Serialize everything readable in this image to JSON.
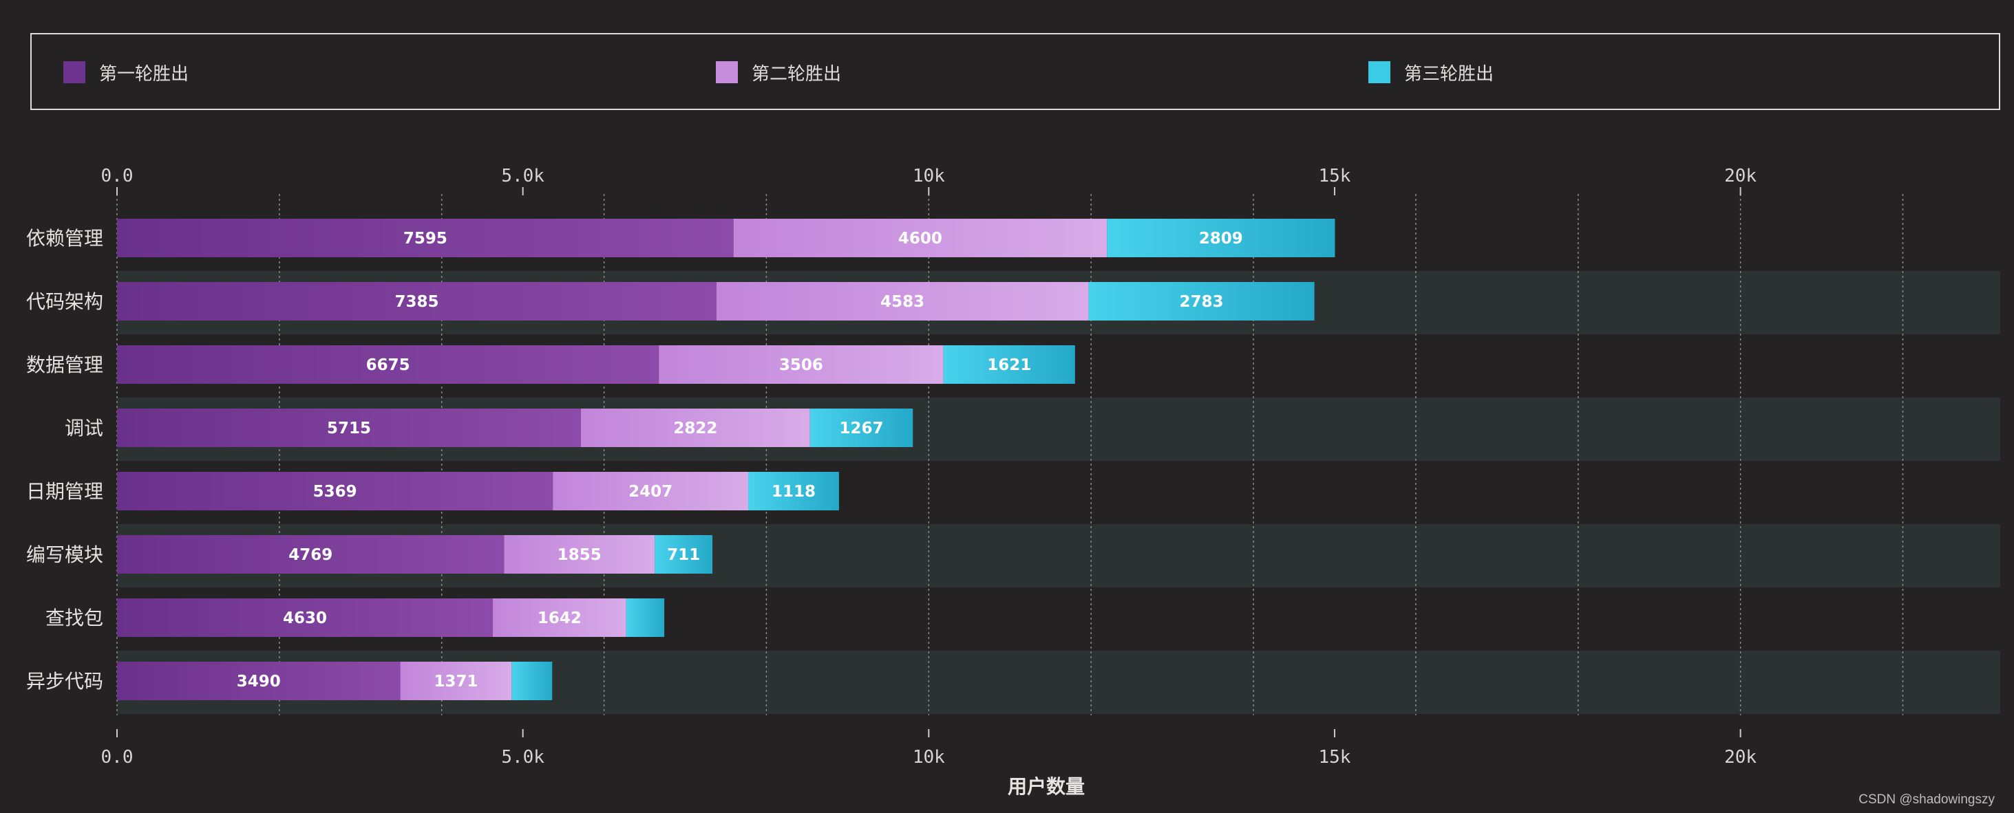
{
  "chart_data": {
    "type": "bar",
    "orientation": "horizontal",
    "stacked": true,
    "categories": [
      "依赖管理",
      "代码架构",
      "数据管理",
      "调试",
      "日期管理",
      "编写模块",
      "查找包",
      "异步代码"
    ],
    "series": [
      {
        "name": "第一轮胜出",
        "color": "#8a4aa8",
        "values": [
          7595,
          7385,
          6675,
          5715,
          5369,
          4769,
          4630,
          3490
        ],
        "labels": [
          "7595",
          "7385",
          "6675",
          "5715",
          "5369",
          "4769",
          "4630",
          "3490"
        ]
      },
      {
        "name": "第二轮胜出",
        "color": "#cf9fe0",
        "values": [
          4600,
          4583,
          3506,
          2822,
          2407,
          1855,
          1642,
          1371
        ],
        "labels": [
          "4600",
          "4583",
          "3506",
          "2822",
          "2407",
          "1855",
          "1642",
          "1371"
        ]
      },
      {
        "name": "第三轮胜出",
        "color": "#3dc8e3",
        "values": [
          2809,
          2783,
          1621,
          1267,
          1118,
          711,
          470,
          500
        ],
        "labels": [
          "2809",
          "2783",
          "1621",
          "1267",
          "1118",
          "711",
          "",
          ""
        ]
      }
    ],
    "xlabel": "用户数量",
    "xlim": [
      0,
      23200
    ],
    "xticks": [
      0,
      5000,
      10000,
      15000,
      20000
    ],
    "xtick_labels": [
      "0.0",
      "5.0k",
      "10k",
      "15k",
      "20k"
    ],
    "minor_gridlines": [
      2000,
      4000,
      6000,
      8000,
      10000,
      12000,
      14000,
      16000,
      18000,
      20000,
      22000
    ],
    "legend_position": "top"
  },
  "watermark": "CSDN @shadowingszy"
}
